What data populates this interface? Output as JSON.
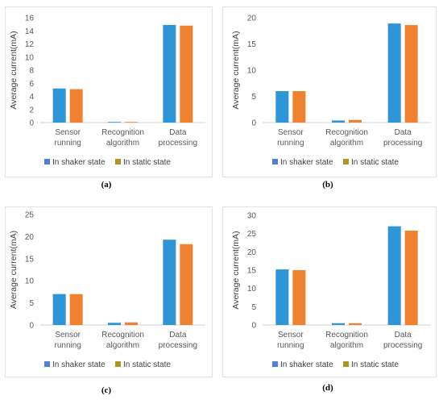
{
  "colors": {
    "shaker": "#2e95d6",
    "static": "#f0812f",
    "legend_shaker": "#4f7fd6",
    "legend_static": "#b0961e",
    "axis": "#d0d0d0"
  },
  "chart_data": [
    {
      "type": "bar",
      "panel_label": "(a)",
      "categories": [
        "Sensor running",
        "Recognition algorithm",
        "Data processing"
      ],
      "series": [
        {
          "name": "In shaker state",
          "values": [
            5.2,
            0.1,
            14.9
          ]
        },
        {
          "name": "In static state",
          "values": [
            5.1,
            0.1,
            14.8
          ]
        }
      ],
      "ylabel": "Average current(mA)",
      "ylim": [
        0,
        16
      ],
      "yticks": [
        0,
        2,
        4,
        6,
        8,
        10,
        12,
        14,
        16
      ],
      "legend": "bottom"
    },
    {
      "type": "bar",
      "panel_label": "(b)",
      "categories": [
        "Sensor running",
        "Recognition algorithm",
        "Data processing"
      ],
      "series": [
        {
          "name": "In shaker state",
          "values": [
            6.0,
            0.4,
            18.9
          ]
        },
        {
          "name": "In static state",
          "values": [
            6.0,
            0.5,
            18.6
          ]
        }
      ],
      "ylabel": "Average current(mA)",
      "ylim": [
        0,
        20
      ],
      "yticks": [
        0,
        5,
        10,
        15,
        20
      ],
      "legend": "bottom"
    },
    {
      "type": "bar",
      "panel_label": "(c)",
      "categories": [
        "Sensor running",
        "Recognition algorithm",
        "Data processing"
      ],
      "series": [
        {
          "name": "In shaker state",
          "values": [
            7.0,
            0.5,
            19.3
          ]
        },
        {
          "name": "In static state",
          "values": [
            7.0,
            0.6,
            18.3
          ]
        }
      ],
      "ylabel": "Average current(mA)",
      "ylim": [
        0,
        25
      ],
      "yticks": [
        0,
        5,
        10,
        15,
        20,
        25
      ],
      "legend": "bottom"
    },
    {
      "type": "bar",
      "panel_label": "(d)",
      "categories": [
        "Sensor running",
        "Recognition algorithm",
        "Data processing"
      ],
      "series": [
        {
          "name": "In shaker state",
          "values": [
            15.2,
            0.5,
            27.0
          ]
        },
        {
          "name": "In static state",
          "values": [
            15.0,
            0.5,
            25.8
          ]
        }
      ],
      "ylabel": "Average current(mA)",
      "ylim": [
        0,
        30
      ],
      "yticks": [
        0,
        5,
        10,
        15,
        20,
        25,
        30
      ],
      "legend": "bottom"
    }
  ]
}
